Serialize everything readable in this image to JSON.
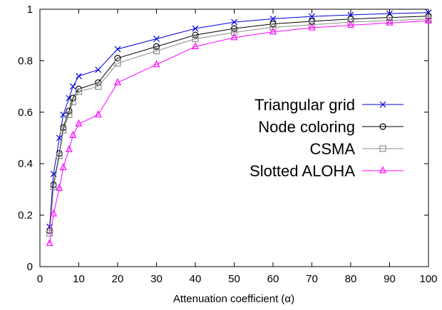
{
  "chart_data": {
    "type": "line",
    "title": "",
    "xlabel": "Attenuation coefficient (α)",
    "ylabel": "",
    "xlim": [
      0,
      100
    ],
    "ylim": [
      0,
      1
    ],
    "x_ticks": [
      0,
      10,
      20,
      30,
      40,
      50,
      60,
      70,
      80,
      90,
      100
    ],
    "y_ticks": [
      0,
      0.2,
      0.4,
      0.6,
      0.8,
      1
    ],
    "y_tick_labels": [
      "0",
      "0.2",
      "0.4",
      "0.6",
      "0.8",
      "1"
    ],
    "grid": false,
    "legend_position": "right",
    "x": [
      2.5,
      3.5,
      5,
      6,
      7.5,
      8.5,
      10,
      15,
      20,
      30,
      40,
      50,
      60,
      70,
      80,
      90,
      100
    ],
    "series": [
      {
        "name": "Triangular grid",
        "color": "#0000e0",
        "marker": "x",
        "values": [
          0.155,
          0.36,
          0.5,
          0.59,
          0.655,
          0.7,
          0.74,
          0.765,
          0.845,
          0.885,
          0.925,
          0.95,
          0.963,
          0.972,
          0.978,
          0.983,
          0.987
        ]
      },
      {
        "name": "Node coloring",
        "color": "#000000",
        "marker": "circle",
        "values": [
          0.14,
          0.318,
          0.44,
          0.54,
          0.605,
          0.655,
          0.69,
          0.715,
          0.81,
          0.855,
          0.9,
          0.925,
          0.943,
          0.953,
          0.962,
          0.968,
          0.973
        ]
      },
      {
        "name": "CSMA",
        "color": "#8c8c8c",
        "marker": "square",
        "values": [
          0.13,
          0.31,
          0.43,
          0.53,
          0.59,
          0.64,
          0.68,
          0.7,
          0.79,
          0.838,
          0.885,
          0.91,
          0.93,
          0.94,
          0.95,
          0.956,
          0.962
        ]
      },
      {
        "name": "Slotted ALOHA",
        "color": "#ff00ff",
        "marker": "triangle",
        "values": [
          0.09,
          0.205,
          0.305,
          0.385,
          0.455,
          0.51,
          0.555,
          0.59,
          0.715,
          0.785,
          0.855,
          0.89,
          0.912,
          0.928,
          0.938,
          0.947,
          0.955
        ]
      }
    ]
  }
}
